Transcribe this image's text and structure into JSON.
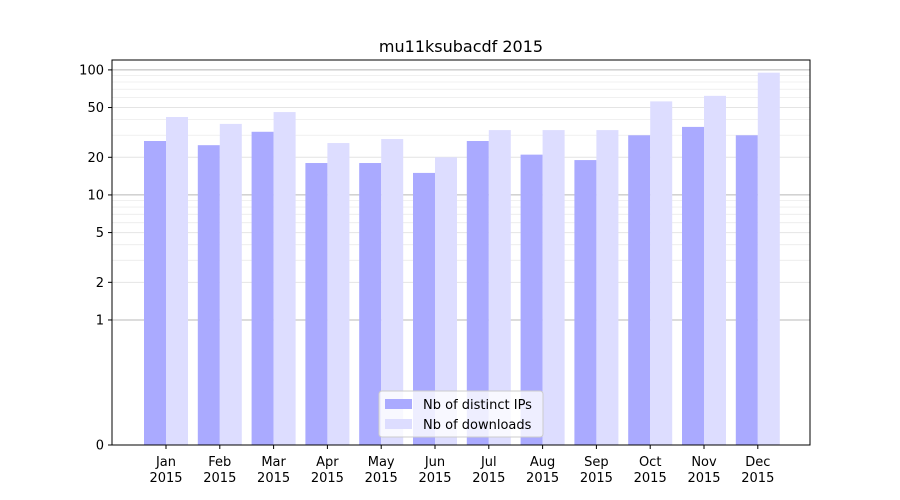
{
  "chart_data": {
    "type": "bar",
    "title": "mu11ksubacdf 2015",
    "xlabel": "",
    "ylabel": "",
    "yscale": "symlog",
    "ylim": [
      0,
      120
    ],
    "yticks": [
      0,
      1,
      2,
      5,
      10,
      20,
      50,
      100
    ],
    "grid": true,
    "legend_position": "lower-center",
    "categories": [
      "Jan\n2015",
      "Feb\n2015",
      "Mar\n2015",
      "Apr\n2015",
      "May\n2015",
      "Jun\n2015",
      "Jul\n2015",
      "Aug\n2015",
      "Sep\n2015",
      "Oct\n2015",
      "Nov\n2015",
      "Dec\n2015"
    ],
    "series": [
      {
        "name": "Nb of distinct IPs",
        "color": "#aaaaff",
        "values": [
          27,
          25,
          32,
          18,
          18,
          15,
          27,
          21,
          19,
          30,
          35,
          30
        ]
      },
      {
        "name": "Nb of downloads",
        "color": "#ddddff",
        "values": [
          42,
          37,
          46,
          26,
          28,
          20,
          33,
          33,
          33,
          56,
          62,
          95
        ]
      }
    ]
  }
}
